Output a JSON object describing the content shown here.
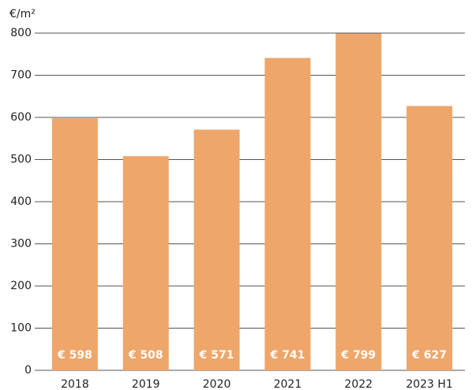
{
  "chart_data": {
    "type": "bar",
    "y_label": "€/m²",
    "categories": [
      "2018",
      "2019",
      "2020",
      "2021",
      "2022",
      "2023 H1"
    ],
    "values": [
      598,
      508,
      571,
      741,
      799,
      627
    ],
    "value_labels": [
      "€ 598",
      "€ 508",
      "€ 571",
      "€ 741",
      "€ 799",
      "€ 627"
    ],
    "color": "#eea66a",
    "ylim": [
      0,
      800
    ],
    "yticks": [
      0,
      100,
      200,
      300,
      400,
      500,
      600,
      700,
      800
    ],
    "grid": true
  }
}
